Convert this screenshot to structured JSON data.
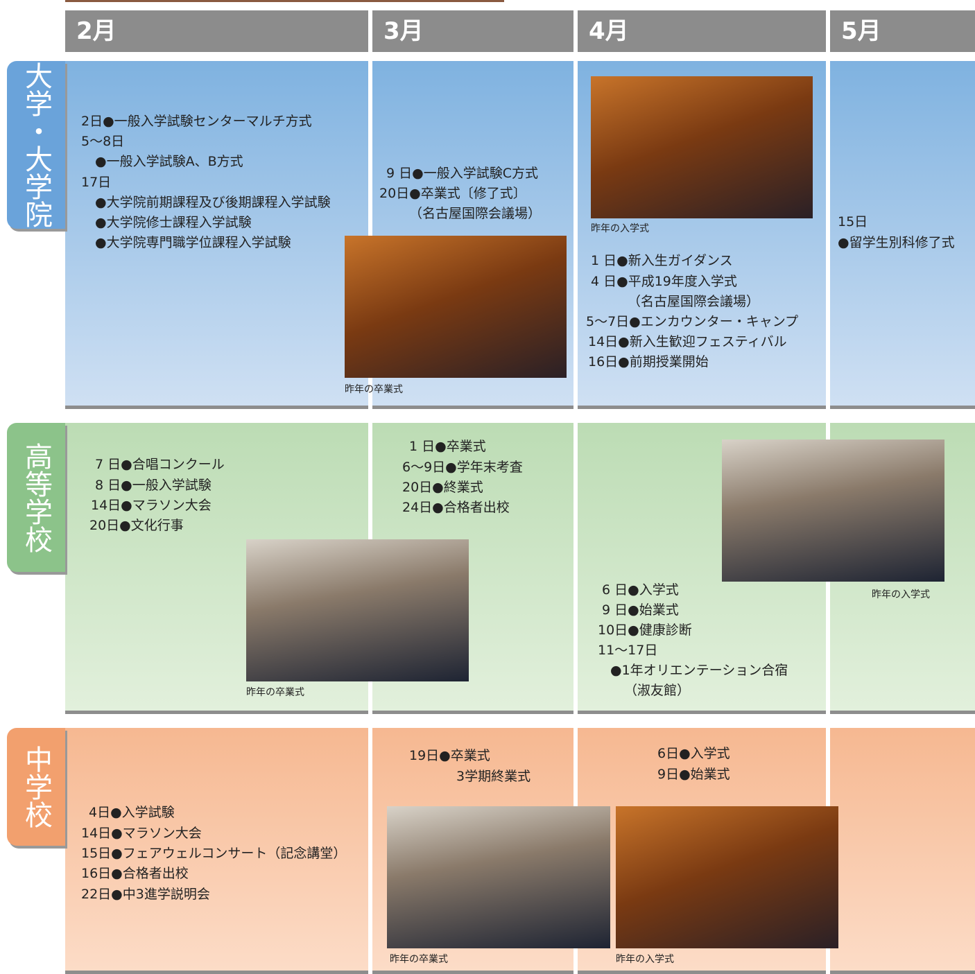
{
  "months": [
    "2月",
    "3月",
    "4月",
    "5月"
  ],
  "sections": [
    {
      "label": "大学・大学院",
      "lines": [
        "2日●一般入学試験センターマルチ方式",
        "5～8日",
        "●一般入学試験A、B方式",
        "17日",
        "●大学院前期課程及び後期課程入学試験",
        "●大学院修士課程入学試験",
        "●大学院専門職学位課程入学試験",
        "9 日●一般入学試験C方式",
        "20日●卒業式〔修了式〕",
        "（名古屋国際会議場）",
        "1 日●新入生ガイダンス",
        "4 日●平成19年度入学式",
        "（名古屋国際会議場）",
        "5～7日●エンカウンター・キャンプ",
        "14日●新入生歓迎フェスティバル",
        "16日●前期授業開始",
        "15日",
        "●留学生別科修了式"
      ],
      "captions": [
        "昨年の卒業式",
        "昨年の入学式"
      ]
    },
    {
      "label": "高等学校",
      "lines": [
        "7 日●合唱コンクール",
        "8 日●一般入学試験",
        "14日●マラソン大会",
        "20日●文化行事",
        "1 日●卒業式",
        "6～9日●学年末考査",
        "20日●終業式",
        "24日●合格者出校",
        "6 日●入学式",
        "9 日●始業式",
        "10日●健康診断",
        "11～17日",
        "●1年オリエンテーション合宿",
        "（淑友館）"
      ],
      "captions": [
        "昨年の卒業式",
        "昨年の入学式"
      ]
    },
    {
      "label": "中学校",
      "lines": [
        "4日●入学試験",
        "14日●マラソン大会",
        "15日●フェアウェルコンサート（記念講堂）",
        "16日●合格者出校",
        "22日●中3進学説明会",
        "19日●卒業式",
        "3学期終業式",
        "6日●入学式",
        "9日●始業式"
      ],
      "captions": [
        "昨年の卒業式",
        "昨年の入学式"
      ]
    }
  ]
}
